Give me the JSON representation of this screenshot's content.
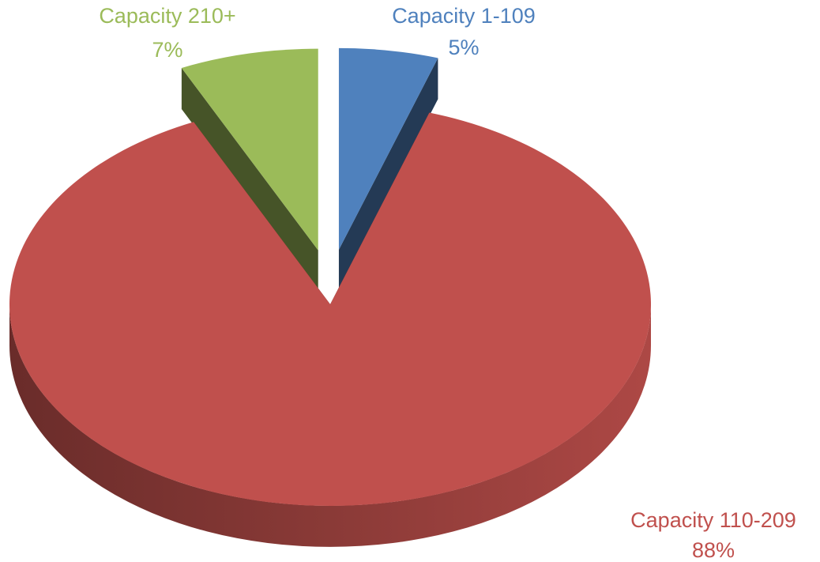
{
  "chart_data": {
    "type": "pie",
    "categories": [
      "Capacity 1-109",
      "Capacity 110-209",
      "Capacity 210+"
    ],
    "values": [
      5,
      88,
      7
    ],
    "value_labels": [
      "5%",
      "88%",
      "7%"
    ],
    "colors": [
      "#4f81bd",
      "#c0504d",
      "#9bbb59"
    ]
  }
}
